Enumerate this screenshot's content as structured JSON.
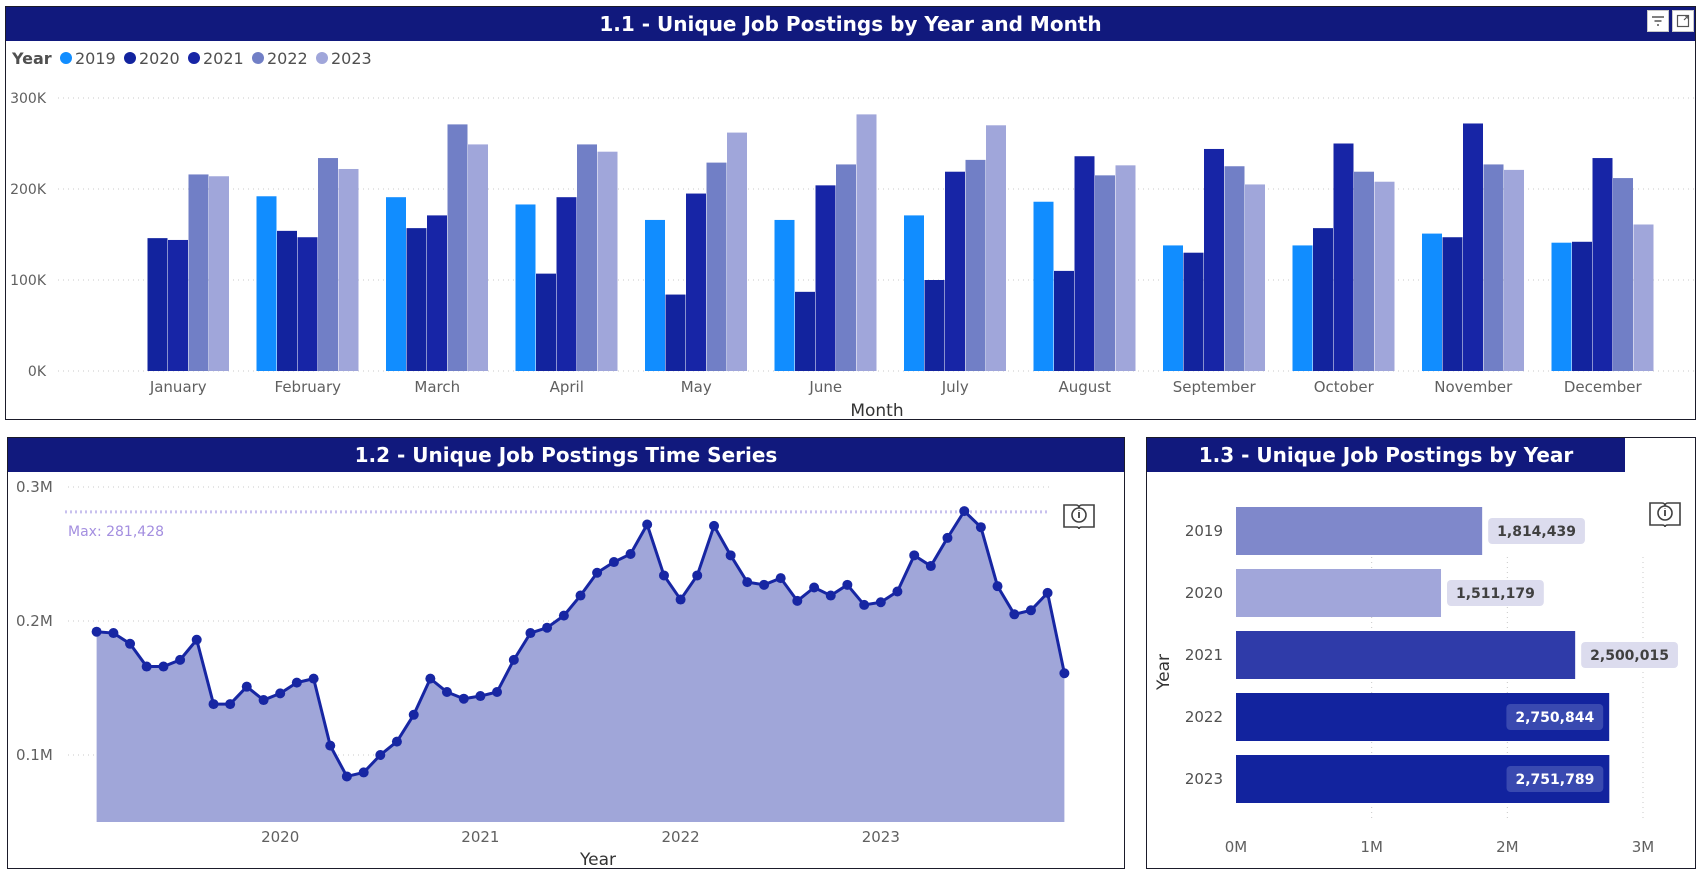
{
  "colors": {
    "header": "#11197d",
    "y2019": "#118dff",
    "y2020": "#12239e",
    "y2021": "#1725a6",
    "y2022": "#717fc6",
    "y2023": "#a0a6da",
    "area": "#a0a6d9",
    "line": "#1726a3",
    "maxline": "#c8c0ee",
    "maxlabel": "#a48fe0"
  },
  "icons": {
    "filter": "filter-icon",
    "focus": "focus-mode-icon",
    "info": "info-book-icon"
  },
  "panel1": {
    "title": "1.1 - Unique Job Postings by Year and Month",
    "chart_data": {
      "type": "bar",
      "title": "1.1 - Unique Job Postings by Year and Month",
      "legend_title": "Year",
      "legend_position": "top-left",
      "xlabel": "Month",
      "ylabel": "",
      "ylim": [
        0,
        300000
      ],
      "yticks": [
        {
          "v": 0,
          "label": "0K"
        },
        {
          "v": 100000,
          "label": "100K"
        },
        {
          "v": 200000,
          "label": "200K"
        },
        {
          "v": 300000,
          "label": "300K"
        }
      ],
      "categories": [
        "January",
        "February",
        "March",
        "April",
        "May",
        "June",
        "July",
        "August",
        "September",
        "October",
        "November",
        "December"
      ],
      "series": [
        {
          "name": "2019",
          "values": [
            null,
            192000,
            191000,
            183000,
            166000,
            166000,
            171000,
            186000,
            138000,
            138000,
            151000,
            141000
          ]
        },
        {
          "name": "2020",
          "values": [
            146000,
            154000,
            157000,
            107000,
            84000,
            87000,
            100000,
            110000,
            130000,
            157000,
            147000,
            142000
          ]
        },
        {
          "name": "2021",
          "values": [
            144000,
            147000,
            171000,
            191000,
            195000,
            204000,
            219000,
            236000,
            244000,
            250000,
            272000,
            234000
          ]
        },
        {
          "name": "2022",
          "values": [
            216000,
            234000,
            271000,
            249000,
            229000,
            227000,
            232000,
            215000,
            225000,
            219000,
            227000,
            212000
          ]
        },
        {
          "name": "2023",
          "values": [
            214000,
            222000,
            249000,
            241000,
            262000,
            282000,
            270000,
            226000,
            205000,
            208000,
            221000,
            161000
          ]
        }
      ]
    }
  },
  "panel2": {
    "title": "1.2 - Unique Job Postings Time Series",
    "max_label": "Max: 281,428",
    "chart_data": {
      "type": "area",
      "title": "1.2 - Unique Job Postings Time Series",
      "xlabel": "Year",
      "ylabel": "",
      "xlim": [
        2019.0,
        2024.0
      ],
      "ylim": [
        0.05,
        0.3
      ],
      "y_unit": "M",
      "xticks": [
        {
          "v": 2020,
          "label": "2020"
        },
        {
          "v": 2021,
          "label": "2021"
        },
        {
          "v": 2022,
          "label": "2022"
        },
        {
          "v": 2023,
          "label": "2023"
        }
      ],
      "yticks": [
        {
          "v": 0.1,
          "label": "0.1M"
        },
        {
          "v": 0.2,
          "label": "0.2M"
        },
        {
          "v": 0.3,
          "label": "0.3M"
        }
      ],
      "max_value": 0.2814,
      "series": [
        {
          "name": "Unique Job Postings",
          "points": [
            [
              2019.083,
              0.192
            ],
            [
              2019.167,
              0.191
            ],
            [
              2019.25,
              0.183
            ],
            [
              2019.333,
              0.166
            ],
            [
              2019.417,
              0.166
            ],
            [
              2019.5,
              0.171
            ],
            [
              2019.583,
              0.186
            ],
            [
              2019.667,
              0.138
            ],
            [
              2019.75,
              0.138
            ],
            [
              2019.833,
              0.151
            ],
            [
              2019.917,
              0.141
            ],
            [
              2020.0,
              0.146
            ],
            [
              2020.083,
              0.154
            ],
            [
              2020.167,
              0.157
            ],
            [
              2020.25,
              0.107
            ],
            [
              2020.333,
              0.084
            ],
            [
              2020.417,
              0.087
            ],
            [
              2020.5,
              0.1
            ],
            [
              2020.583,
              0.11
            ],
            [
              2020.667,
              0.13
            ],
            [
              2020.75,
              0.157
            ],
            [
              2020.833,
              0.147
            ],
            [
              2020.917,
              0.142
            ],
            [
              2021.0,
              0.144
            ],
            [
              2021.083,
              0.147
            ],
            [
              2021.167,
              0.171
            ],
            [
              2021.25,
              0.191
            ],
            [
              2021.333,
              0.195
            ],
            [
              2021.417,
              0.204
            ],
            [
              2021.5,
              0.219
            ],
            [
              2021.583,
              0.236
            ],
            [
              2021.667,
              0.244
            ],
            [
              2021.75,
              0.25
            ],
            [
              2021.833,
              0.272
            ],
            [
              2021.917,
              0.234
            ],
            [
              2022.0,
              0.216
            ],
            [
              2022.083,
              0.234
            ],
            [
              2022.167,
              0.271
            ],
            [
              2022.25,
              0.249
            ],
            [
              2022.333,
              0.229
            ],
            [
              2022.417,
              0.227
            ],
            [
              2022.5,
              0.232
            ],
            [
              2022.583,
              0.215
            ],
            [
              2022.667,
              0.225
            ],
            [
              2022.75,
              0.219
            ],
            [
              2022.833,
              0.227
            ],
            [
              2022.917,
              0.212
            ],
            [
              2023.0,
              0.214
            ],
            [
              2023.083,
              0.222
            ],
            [
              2023.167,
              0.249
            ],
            [
              2023.25,
              0.241
            ],
            [
              2023.333,
              0.262
            ],
            [
              2023.417,
              0.282
            ],
            [
              2023.5,
              0.27
            ],
            [
              2023.583,
              0.226
            ],
            [
              2023.667,
              0.205
            ],
            [
              2023.75,
              0.208
            ],
            [
              2023.833,
              0.221
            ],
            [
              2023.917,
              0.161
            ]
          ]
        }
      ]
    }
  },
  "panel3": {
    "title": "1.3 - Unique Job Postings by Year",
    "chart_data": {
      "type": "bar",
      "orientation": "horizontal",
      "title": "1.3 - Unique Job Postings by Year",
      "xlabel": "",
      "ylabel": "Year",
      "xlim": [
        0,
        3000000
      ],
      "xticks": [
        {
          "v": 0,
          "label": "0M"
        },
        {
          "v": 1000000,
          "label": "1M"
        },
        {
          "v": 2000000,
          "label": "2M"
        },
        {
          "v": 3000000,
          "label": "3M"
        }
      ],
      "categories": [
        "2019",
        "2020",
        "2021",
        "2022",
        "2023"
      ],
      "values": [
        1814439,
        1511179,
        2500015,
        2750844,
        2751789
      ],
      "data_labels": [
        "1,814,439",
        "1,511,179",
        "2,500,015",
        "2,750,844",
        "2,751,789"
      ],
      "bar_colors": [
        "#7f88cb",
        "#a1a6da",
        "#2f3ba9",
        "#12239e",
        "#12239e"
      ]
    }
  }
}
